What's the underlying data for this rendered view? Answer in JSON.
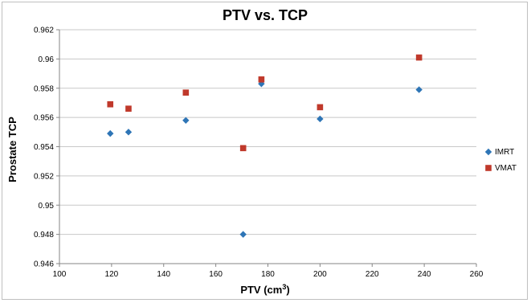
{
  "chart_data": {
    "type": "scatter",
    "title": "PTV vs. TCP",
    "xlabel": "PTV (cm",
    "xlabel_sup": "3",
    "xlabel_close": ")",
    "ylabel": "Prostate TCP",
    "xlim": [
      100,
      260
    ],
    "ylim": [
      0.946,
      0.962
    ],
    "x_ticks": [
      "100",
      "120",
      "140",
      "160",
      "180",
      "200",
      "220",
      "240",
      "260"
    ],
    "y_ticks": [
      "0.946",
      "0.948",
      "0.95",
      "0.952",
      "0.954",
      "0.956",
      "0.958",
      "0.96",
      "0.962"
    ],
    "grid": "horizontal",
    "legend_position": "right",
    "series": [
      {
        "name": "IMRT",
        "marker": "diamond",
        "color": "#2E75B6",
        "x": [
          119.5,
          126.5,
          148.5,
          170.5,
          177.5,
          200,
          238
        ],
        "y": [
          0.9549,
          0.955,
          0.9558,
          0.948,
          0.9583,
          0.9559,
          0.9579
        ]
      },
      {
        "name": "VMAT",
        "marker": "square",
        "color": "#C0392B",
        "x": [
          119.5,
          126.5,
          148.5,
          170.5,
          177.5,
          200,
          238
        ],
        "y": [
          0.9569,
          0.9566,
          0.9577,
          0.9539,
          0.9586,
          0.9567,
          0.9601
        ]
      }
    ]
  }
}
